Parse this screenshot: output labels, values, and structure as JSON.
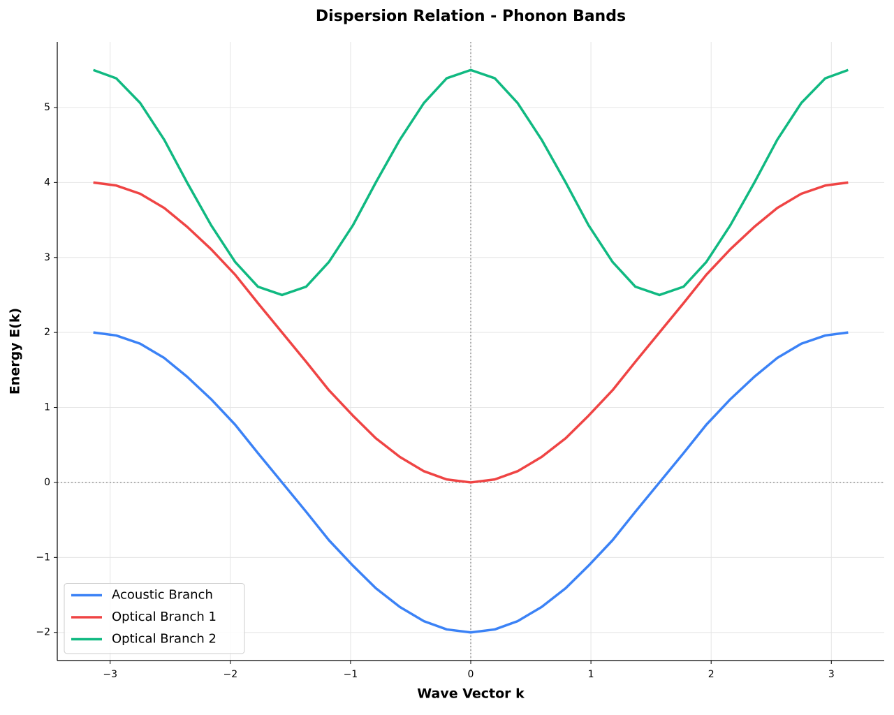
{
  "chart_data": {
    "type": "line",
    "title": "Dispersion Relation - Phonon Bands",
    "xlabel": "Wave Vector k",
    "ylabel": "Energy E(k)",
    "x": [
      -3.14,
      -2.95,
      -2.75,
      -2.55,
      -2.36,
      -2.16,
      -1.96,
      -1.77,
      -1.57,
      -1.37,
      -1.18,
      -0.98,
      -0.79,
      -0.59,
      -0.39,
      -0.2,
      0,
      0.2,
      0.39,
      0.59,
      0.79,
      0.98,
      1.18,
      1.37,
      1.57,
      1.77,
      1.96,
      2.16,
      2.36,
      2.55,
      2.75,
      2.95,
      3.14
    ],
    "series": [
      {
        "name": "Acoustic Branch",
        "color": "#3b82f6",
        "values": [
          2,
          1.96,
          1.85,
          1.66,
          1.41,
          1.11,
          0.77,
          0.39,
          0,
          -0.39,
          -0.77,
          -1.11,
          -1.41,
          -1.66,
          -1.85,
          -1.96,
          -2,
          -1.96,
          -1.85,
          -1.66,
          -1.41,
          -1.11,
          -0.77,
          -0.39,
          0,
          0.39,
          0.77,
          1.11,
          1.41,
          1.66,
          1.85,
          1.96,
          2
        ]
      },
      {
        "name": "Optical Branch 1",
        "color": "#ef4444",
        "values": [
          4,
          3.96,
          3.85,
          3.66,
          3.41,
          3.11,
          2.77,
          2.39,
          2,
          1.61,
          1.23,
          0.89,
          0.59,
          0.34,
          0.15,
          0.04,
          0,
          0.04,
          0.15,
          0.34,
          0.59,
          0.89,
          1.23,
          1.61,
          2,
          2.39,
          2.77,
          3.11,
          3.41,
          3.66,
          3.85,
          3.96,
          4
        ]
      },
      {
        "name": "Optical Branch 2",
        "color": "#10b981",
        "values": [
          5.5,
          5.39,
          5.06,
          4.57,
          4,
          3.43,
          2.94,
          2.61,
          2.5,
          2.61,
          2.94,
          3.43,
          4,
          4.57,
          5.06,
          5.39,
          5.5,
          5.39,
          5.06,
          4.57,
          4,
          3.43,
          2.94,
          2.61,
          2.5,
          2.61,
          2.94,
          3.43,
          4,
          4.57,
          5.06,
          5.39,
          5.5
        ]
      }
    ],
    "xlim": [
      -3.44,
      3.44
    ],
    "ylim": [
      -2.375,
      5.875
    ],
    "xticks": [
      {
        "value": -3,
        "label": "−3"
      },
      {
        "value": -2,
        "label": "−2"
      },
      {
        "value": -1,
        "label": "−1"
      },
      0,
      1,
      2,
      3
    ],
    "yticks": [
      {
        "value": -2,
        "label": "−2"
      },
      {
        "value": -1,
        "label": "−1"
      },
      0,
      1,
      2,
      3,
      4,
      5
    ],
    "grid": true,
    "hlines": [
      0
    ],
    "vlines": [
      0
    ],
    "legend": "lower left"
  }
}
